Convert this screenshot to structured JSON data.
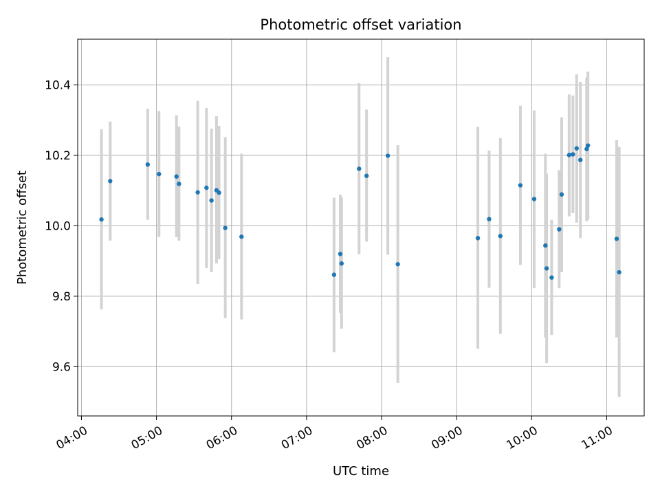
{
  "chart_data": {
    "type": "scatter",
    "title": "Photometric offset variation",
    "xlabel": "UTC time",
    "ylabel": "Photometric offset",
    "xlim_hours": [
      3.95,
      11.5
    ],
    "ylim": [
      9.46,
      10.53
    ],
    "x_ticks": [
      {
        "hours": 4,
        "label": "04:00"
      },
      {
        "hours": 5,
        "label": "05:00"
      },
      {
        "hours": 6,
        "label": "06:00"
      },
      {
        "hours": 7,
        "label": "07:00"
      },
      {
        "hours": 8,
        "label": "08:00"
      },
      {
        "hours": 9,
        "label": "09:00"
      },
      {
        "hours": 10,
        "label": "10:00"
      },
      {
        "hours": 11,
        "label": "11:00"
      }
    ],
    "y_ticks": [
      {
        "value": 9.6,
        "label": "9.6"
      },
      {
        "value": 9.8,
        "label": "9.8"
      },
      {
        "value": 10.0,
        "label": "10.0"
      },
      {
        "value": 10.2,
        "label": "10.2"
      },
      {
        "value": 10.4,
        "label": "10.4"
      }
    ],
    "grid": true,
    "x_tick_label_rotation": "30 degrees",
    "colors": {
      "points": "#1f77b4",
      "error_bars": "#d3d3d3",
      "grid": "#b0b0b0",
      "axes": "#000000"
    },
    "series": [
      {
        "points": [
          {
            "x": "04:16",
            "y": 10.018,
            "ylow": 9.763,
            "yhigh": 10.274
          },
          {
            "x": "04:23",
            "y": 10.127,
            "ylow": 9.958,
            "yhigh": 10.296
          },
          {
            "x": "04:53",
            "y": 10.174,
            "ylow": 10.017,
            "yhigh": 10.332
          },
          {
            "x": "05:02",
            "y": 10.147,
            "ylow": 9.968,
            "yhigh": 10.326
          },
          {
            "x": "05:16",
            "y": 10.14,
            "ylow": 9.968,
            "yhigh": 10.314
          },
          {
            "x": "05:18",
            "y": 10.119,
            "ylow": 9.958,
            "yhigh": 10.282
          },
          {
            "x": "05:33",
            "y": 10.095,
            "ylow": 9.835,
            "yhigh": 10.355
          },
          {
            "x": "05:40",
            "y": 10.108,
            "ylow": 9.88,
            "yhigh": 10.335
          },
          {
            "x": "05:44",
            "y": 10.072,
            "ylow": 9.868,
            "yhigh": 10.276
          },
          {
            "x": "05:48",
            "y": 10.101,
            "ylow": 9.893,
            "yhigh": 10.311
          },
          {
            "x": "05:50",
            "y": 10.094,
            "ylow": 9.905,
            "yhigh": 10.284
          },
          {
            "x": "05:55",
            "y": 9.994,
            "ylow": 9.738,
            "yhigh": 10.252
          },
          {
            "x": "06:08",
            "y": 9.969,
            "ylow": 9.734,
            "yhigh": 10.205
          },
          {
            "x": "07:22",
            "y": 9.861,
            "ylow": 9.641,
            "yhigh": 10.08
          },
          {
            "x": "07:27",
            "y": 9.92,
            "ylow": 9.753,
            "yhigh": 10.088
          },
          {
            "x": "07:28",
            "y": 9.893,
            "ylow": 9.708,
            "yhigh": 10.08
          },
          {
            "x": "07:42",
            "y": 10.162,
            "ylow": 9.919,
            "yhigh": 10.405
          },
          {
            "x": "07:48",
            "y": 10.142,
            "ylow": 9.955,
            "yhigh": 10.33
          },
          {
            "x": "08:05",
            "y": 10.199,
            "ylow": 9.918,
            "yhigh": 10.479
          },
          {
            "x": "08:13",
            "y": 9.891,
            "ylow": 9.554,
            "yhigh": 10.229
          },
          {
            "x": "09:17",
            "y": 9.965,
            "ylow": 9.651,
            "yhigh": 10.281
          },
          {
            "x": "09:26",
            "y": 10.019,
            "ylow": 9.824,
            "yhigh": 10.214
          },
          {
            "x": "09:35",
            "y": 9.971,
            "ylow": 9.693,
            "yhigh": 10.249
          },
          {
            "x": "09:51",
            "y": 10.115,
            "ylow": 9.889,
            "yhigh": 10.341
          },
          {
            "x": "10:02",
            "y": 10.076,
            "ylow": 9.823,
            "yhigh": 10.328
          },
          {
            "x": "10:11",
            "y": 9.944,
            "ylow": 9.682,
            "yhigh": 10.205
          },
          {
            "x": "10:12",
            "y": 9.879,
            "ylow": 9.61,
            "yhigh": 10.148
          },
          {
            "x": "10:16",
            "y": 9.853,
            "ylow": 9.69,
            "yhigh": 10.017
          },
          {
            "x": "10:22",
            "y": 9.99,
            "ylow": 9.823,
            "yhigh": 10.158
          },
          {
            "x": "10:24",
            "y": 10.089,
            "ylow": 9.868,
            "yhigh": 10.308
          },
          {
            "x": "10:30",
            "y": 10.201,
            "ylow": 10.027,
            "yhigh": 10.373
          },
          {
            "x": "10:33",
            "y": 10.203,
            "ylow": 10.036,
            "yhigh": 10.37
          },
          {
            "x": "10:36",
            "y": 10.22,
            "ylow": 10.009,
            "yhigh": 10.43
          },
          {
            "x": "10:39",
            "y": 10.187,
            "ylow": 9.965,
            "yhigh": 10.409
          },
          {
            "x": "10:44",
            "y": 10.218,
            "ylow": 10.013,
            "yhigh": 10.421
          },
          {
            "x": "10:45",
            "y": 10.228,
            "ylow": 10.018,
            "yhigh": 10.438
          },
          {
            "x": "11:08",
            "y": 9.963,
            "ylow": 9.683,
            "yhigh": 10.243
          },
          {
            "x": "11:10",
            "y": 9.868,
            "ylow": 9.514,
            "yhigh": 10.224
          }
        ]
      }
    ]
  }
}
